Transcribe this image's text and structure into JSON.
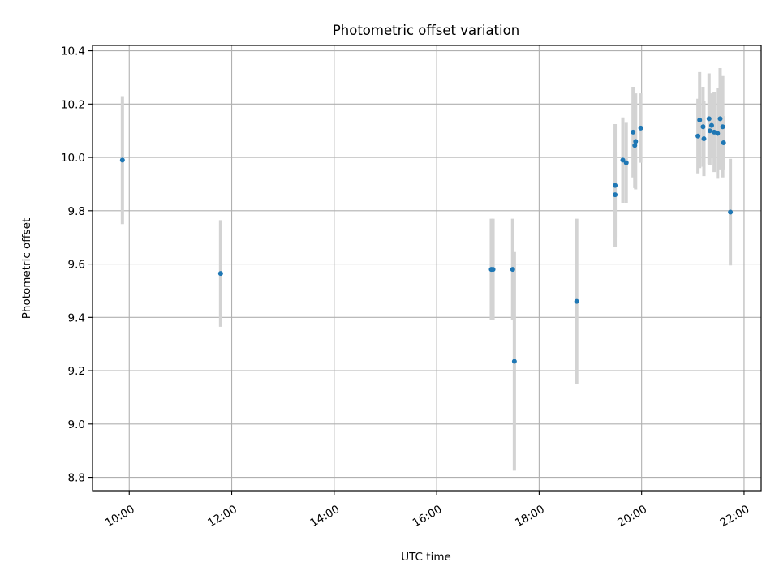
{
  "chart_data": {
    "type": "scatter",
    "title": "Photometric offset variation",
    "xlabel": "UTC time",
    "ylabel": "Photometric offset",
    "xlim": [
      "09:17",
      "22:20"
    ],
    "ylim": [
      8.75,
      10.42
    ],
    "grid": true,
    "legend": "none",
    "error_bars": true,
    "colors": {
      "marker": "#1f77b4",
      "error_bar": "#d3d3d3",
      "grid": "#b0b0b0"
    },
    "x_ticks": [
      "10:00",
      "12:00",
      "14:00",
      "16:00",
      "18:00",
      "20:00",
      "22:00"
    ],
    "y_ticks": [
      8.8,
      9.0,
      9.2,
      9.4,
      9.6,
      9.8,
      10.0,
      10.2,
      10.4
    ],
    "y_tick_labels": [
      "8.8",
      "9.0",
      "9.2",
      "9.4",
      "9.6",
      "9.8",
      "10.0",
      "10.2",
      "10.4"
    ],
    "points": [
      {
        "x": "09:52",
        "y": 9.99,
        "err": 0.24
      },
      {
        "x": "11:47",
        "y": 9.565,
        "err": 0.2
      },
      {
        "x": "17:04",
        "y": 9.58,
        "err": 0.19
      },
      {
        "x": "17:06",
        "y": 9.58,
        "err": 0.19
      },
      {
        "x": "17:29",
        "y": 9.58,
        "err": 0.19
      },
      {
        "x": "17:31",
        "y": 9.235,
        "err": 0.41
      },
      {
        "x": "18:44",
        "y": 9.46,
        "err": 0.31
      },
      {
        "x": "19:29",
        "y": 9.895,
        "err": 0.23
      },
      {
        "x": "19:29",
        "y": 9.86,
        "err": 0.16
      },
      {
        "x": "19:38",
        "y": 9.99,
        "err": 0.16
      },
      {
        "x": "19:42",
        "y": 9.98,
        "err": 0.15
      },
      {
        "x": "19:50",
        "y": 10.095,
        "err": 0.17
      },
      {
        "x": "19:52",
        "y": 10.045,
        "err": 0.16
      },
      {
        "x": "19:53",
        "y": 10.06,
        "err": 0.18
      },
      {
        "x": "19:59",
        "y": 10.11,
        "err": 0.13
      },
      {
        "x": "21:06",
        "y": 10.08,
        "err": 0.14
      },
      {
        "x": "21:08",
        "y": 10.14,
        "err": 0.18
      },
      {
        "x": "21:12",
        "y": 10.115,
        "err": 0.15
      },
      {
        "x": "21:13",
        "y": 10.07,
        "err": 0.14
      },
      {
        "x": "21:19",
        "y": 10.145,
        "err": 0.17
      },
      {
        "x": "21:20",
        "y": 10.1,
        "err": 0.13
      },
      {
        "x": "21:22",
        "y": 10.12,
        "err": 0.12
      },
      {
        "x": "21:25",
        "y": 10.095,
        "err": 0.15
      },
      {
        "x": "21:29",
        "y": 10.09,
        "err": 0.17
      },
      {
        "x": "21:32",
        "y": 10.145,
        "err": 0.19
      },
      {
        "x": "21:35",
        "y": 10.115,
        "err": 0.19
      },
      {
        "x": "21:36",
        "y": 10.055,
        "err": 0.1
      },
      {
        "x": "21:44",
        "y": 9.795,
        "err": 0.2
      }
    ]
  }
}
